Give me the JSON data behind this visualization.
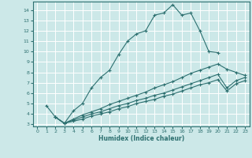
{
  "xlabel": "Humidex (Indice chaleur)",
  "bg_color": "#cce8e8",
  "grid_color": "#ffffff",
  "line_color": "#2d7070",
  "xlim": [
    -0.5,
    23.5
  ],
  "ylim": [
    2.8,
    14.8
  ],
  "yticks": [
    3,
    4,
    5,
    6,
    7,
    8,
    9,
    10,
    11,
    12,
    13,
    14
  ],
  "xticks": [
    0,
    1,
    2,
    3,
    4,
    5,
    6,
    7,
    8,
    9,
    10,
    11,
    12,
    13,
    14,
    15,
    16,
    17,
    18,
    19,
    20,
    21,
    22,
    23
  ],
  "line1_x": [
    1,
    2,
    3,
    4,
    5,
    6,
    7,
    8,
    9,
    10,
    11,
    12,
    13,
    14,
    15,
    16,
    17,
    18,
    19,
    20
  ],
  "line1_y": [
    4.8,
    3.7,
    3.1,
    4.3,
    5.0,
    6.5,
    7.5,
    8.2,
    9.7,
    11.0,
    11.7,
    12.0,
    13.5,
    13.7,
    14.5,
    13.5,
    13.7,
    12.0,
    10.0,
    9.9
  ],
  "line2_x": [
    2,
    3,
    4,
    5,
    6,
    7,
    8,
    9,
    10,
    11,
    12,
    13,
    14,
    15,
    16,
    17,
    18,
    19,
    20,
    21,
    22,
    23
  ],
  "line2_y": [
    3.7,
    3.1,
    3.5,
    3.9,
    4.2,
    4.5,
    4.9,
    5.2,
    5.5,
    5.8,
    6.1,
    6.5,
    6.8,
    7.1,
    7.5,
    7.9,
    8.2,
    8.5,
    8.8,
    8.3,
    8.0,
    7.7
  ],
  "line3_x": [
    2,
    3,
    4,
    5,
    6,
    7,
    8,
    9,
    10,
    11,
    12,
    13,
    14,
    15,
    16,
    17,
    18,
    19,
    20,
    21,
    22,
    23
  ],
  "line3_y": [
    3.7,
    3.1,
    3.4,
    3.7,
    4.0,
    4.2,
    4.5,
    4.8,
    5.0,
    5.3,
    5.5,
    5.8,
    6.0,
    6.3,
    6.6,
    6.9,
    7.2,
    7.5,
    7.8,
    6.5,
    7.2,
    7.5
  ],
  "line4_x": [
    2,
    3,
    4,
    5,
    6,
    7,
    8,
    9,
    10,
    11,
    12,
    13,
    14,
    15,
    16,
    17,
    18,
    19,
    20,
    21,
    22,
    23
  ],
  "line4_y": [
    3.7,
    3.1,
    3.3,
    3.5,
    3.8,
    4.0,
    4.2,
    4.5,
    4.7,
    5.0,
    5.2,
    5.4,
    5.7,
    5.9,
    6.2,
    6.5,
    6.8,
    7.0,
    7.3,
    6.2,
    6.9,
    7.2
  ]
}
